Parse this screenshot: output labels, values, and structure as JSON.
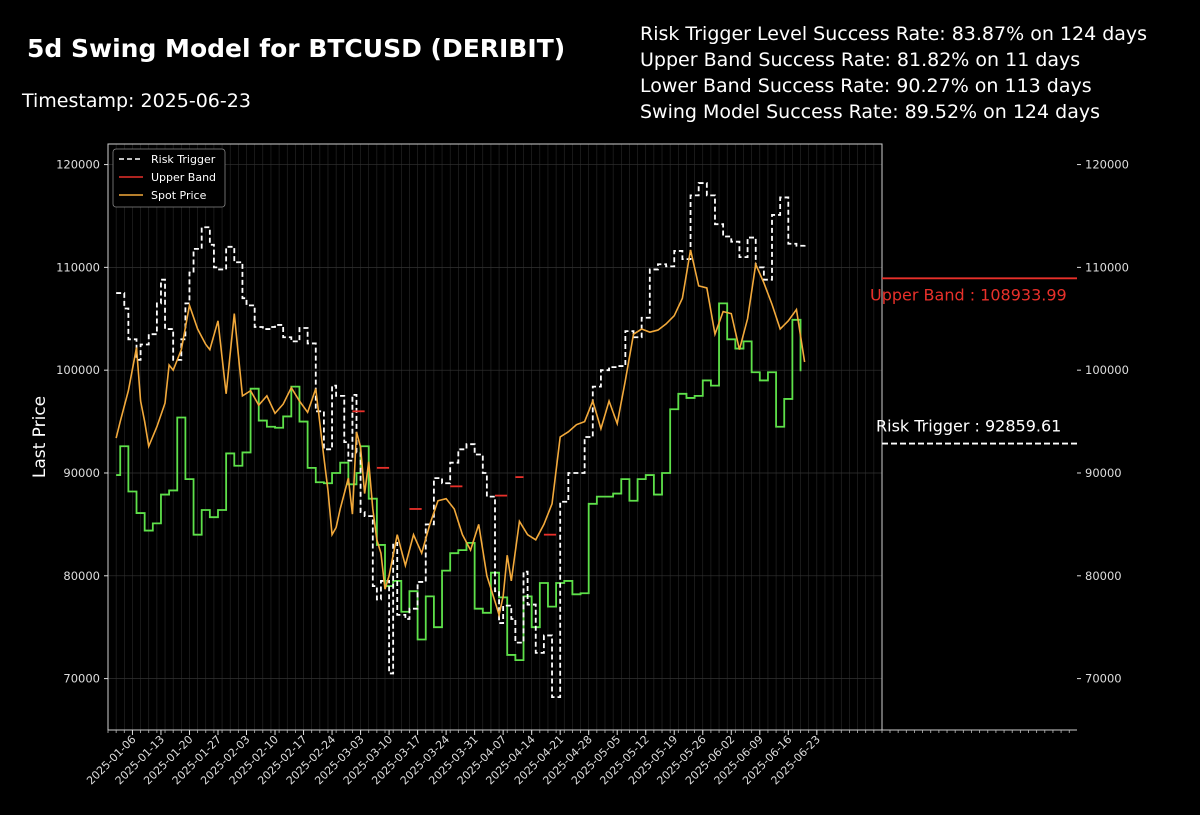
{
  "title": "5d Swing Model for BTCUSD (DERIBIT)",
  "timestamp": "Timestamp: 2025-06-23",
  "stats": [
    "Risk Trigger Level Success Rate: 83.87% on 124 days",
    "Upper Band Success Rate: 81.82% on 11 days",
    "Lower Band Success Rate: 90.27% on 113 days",
    "Swing Model Success Rate: 89.52% on 124 days"
  ],
  "colors": {
    "background": "#000000",
    "risk_trigger": "#ffffff",
    "upper_band": "#e8302a",
    "spot_price": "#f2a93b",
    "lower_band": "#5ee04a"
  },
  "chart_data": {
    "type": "line",
    "title": "",
    "xlabel": "",
    "ylabel": "Last Price",
    "ylim": [
      65000,
      122000
    ],
    "y_ticks": [
      70000,
      80000,
      90000,
      100000,
      110000,
      120000
    ],
    "x_ticks": [
      "2025-01-06",
      "2025-01-13",
      "2025-01-20",
      "2025-01-27",
      "2025-02-03",
      "2025-02-10",
      "2025-02-17",
      "2025-02-24",
      "2025-03-03",
      "2025-03-10",
      "2025-03-17",
      "2025-03-24",
      "2025-03-31",
      "2025-04-07",
      "2025-04-14",
      "2025-04-21",
      "2025-04-28",
      "2025-05-05",
      "2025-05-12",
      "2025-05-19",
      "2025-05-26",
      "2025-06-02",
      "2025-06-09",
      "2025-06-16",
      "2025-06-23"
    ],
    "x_range": [
      "2024-12-31",
      "2025-07-09"
    ],
    "grid": true,
    "legend_position": "top-left",
    "legend": [
      "Risk Trigger",
      "Upper Band",
      "Spot Price"
    ],
    "series": [
      {
        "name": "Risk Trigger",
        "style": "step-dashed",
        "x": [
          "2025-01-02",
          "2025-01-04",
          "2025-01-05",
          "2025-01-07",
          "2025-01-08",
          "2025-01-10",
          "2025-01-12",
          "2025-01-13",
          "2025-01-14",
          "2025-01-16",
          "2025-01-18",
          "2025-01-19",
          "2025-01-20",
          "2025-01-21",
          "2025-01-23",
          "2025-01-25",
          "2025-01-26",
          "2025-01-27",
          "2025-01-29",
          "2025-01-31",
          "2025-02-02",
          "2025-02-03",
          "2025-02-05",
          "2025-02-07",
          "2025-02-09",
          "2025-02-10",
          "2025-02-12",
          "2025-02-14",
          "2025-02-16",
          "2025-02-18",
          "2025-02-20",
          "2025-02-22",
          "2025-02-24",
          "2025-02-25",
          "2025-02-27",
          "2025-02-28",
          "2025-03-01",
          "2025-03-02",
          "2025-03-03",
          "2025-03-04",
          "2025-03-06",
          "2025-03-07",
          "2025-03-08",
          "2025-03-10",
          "2025-03-11",
          "2025-03-12",
          "2025-03-14",
          "2025-03-15",
          "2025-03-17",
          "2025-03-19",
          "2025-03-21",
          "2025-03-23",
          "2025-03-25",
          "2025-03-27",
          "2025-03-29",
          "2025-03-31",
          "2025-04-02",
          "2025-04-03",
          "2025-04-05",
          "2025-04-06",
          "2025-04-07",
          "2025-04-09",
          "2025-04-10",
          "2025-04-12",
          "2025-04-13",
          "2025-04-15",
          "2025-04-17",
          "2025-04-19",
          "2025-04-21",
          "2025-04-23",
          "2025-04-25",
          "2025-04-27",
          "2025-04-29",
          "2025-05-01",
          "2025-05-03",
          "2025-05-05",
          "2025-05-07",
          "2025-05-09",
          "2025-05-11",
          "2025-05-13",
          "2025-05-15",
          "2025-05-17",
          "2025-05-19",
          "2025-05-21",
          "2025-05-23",
          "2025-05-25",
          "2025-05-27",
          "2025-05-29",
          "2025-05-31",
          "2025-06-02",
          "2025-06-04",
          "2025-06-06",
          "2025-06-08",
          "2025-06-10",
          "2025-06-12",
          "2025-06-14",
          "2025-06-16",
          "2025-06-18",
          "2025-06-20"
        ],
        "y": [
          107500,
          106000,
          103000,
          101000,
          102500,
          103500,
          106500,
          108800,
          104000,
          101000,
          103000,
          106500,
          109500,
          111800,
          113900,
          112200,
          110000,
          109800,
          112000,
          110500,
          107000,
          106300,
          104200,
          104000,
          104200,
          104400,
          103200,
          102800,
          104100,
          102600,
          96000,
          92300,
          98500,
          97500,
          93000,
          91200,
          97600,
          92000,
          86200,
          85800,
          79000,
          77700,
          79500,
          70500,
          83200,
          76200,
          75800,
          76800,
          79400,
          85000,
          89500,
          89000,
          91000,
          92300,
          92800,
          91800,
          90000,
          87700,
          78500,
          75400,
          77100,
          75800,
          73500,
          80400,
          77200,
          72500,
          74200,
          68200,
          87200,
          90000,
          90000,
          93500,
          98400,
          100000,
          100300,
          100400,
          103800,
          103200,
          105100,
          109800,
          110300,
          110100,
          111600,
          110800,
          117000,
          118200,
          117000,
          114200,
          113000,
          112500,
          111000,
          112900,
          110000,
          108800,
          115100,
          116800,
          112300,
          112100,
          112300
        ]
      },
      {
        "name": "Upper Band",
        "style": "step-solid",
        "segments": [
          {
            "x": [
              "2025-03-01",
              "2025-03-02",
              "2025-03-04"
            ],
            "y": [
              96000,
              96000,
              96000
            ]
          },
          {
            "x": [
              "2025-03-07",
              "2025-03-08",
              "2025-03-10"
            ],
            "y": [
              90500,
              90500,
              90500
            ]
          },
          {
            "x": [
              "2025-03-15",
              "2025-03-16",
              "2025-03-18"
            ],
            "y": [
              86500,
              86500,
              86500
            ]
          },
          {
            "x": [
              "2025-03-25",
              "2025-03-26",
              "2025-03-28"
            ],
            "y": [
              88700,
              88700,
              88700
            ]
          },
          {
            "x": [
              "2025-04-05",
              "2025-04-06",
              "2025-04-08"
            ],
            "y": [
              87800,
              87800,
              87800
            ]
          },
          {
            "x": [
              "2025-04-10",
              "2025-04-11",
              "2025-04-12"
            ],
            "y": [
              89600,
              89600,
              89600
            ]
          },
          {
            "x": [
              "2025-04-17",
              "2025-04-18",
              "2025-04-20"
            ],
            "y": [
              84000,
              84000,
              84000
            ]
          }
        ]
      },
      {
        "name": "Spot Price",
        "style": "line",
        "x": [
          "2025-01-02",
          "2025-01-03",
          "2025-01-05",
          "2025-01-07",
          "2025-01-08",
          "2025-01-09",
          "2025-01-10",
          "2025-01-12",
          "2025-01-14",
          "2025-01-15",
          "2025-01-16",
          "2025-01-18",
          "2025-01-20",
          "2025-01-22",
          "2025-01-24",
          "2025-01-25",
          "2025-01-27",
          "2025-01-29",
          "2025-01-31",
          "2025-02-01",
          "2025-02-02",
          "2025-02-04",
          "2025-02-06",
          "2025-02-08",
          "2025-02-10",
          "2025-02-12",
          "2025-02-14",
          "2025-02-16",
          "2025-02-18",
          "2025-02-20",
          "2025-02-22",
          "2025-02-23",
          "2025-02-24",
          "2025-02-25",
          "2025-02-26",
          "2025-02-28",
          "2025-03-01",
          "2025-03-02",
          "2025-03-03",
          "2025-03-04",
          "2025-03-05",
          "2025-03-06",
          "2025-03-07",
          "2025-03-08",
          "2025-03-09",
          "2025-03-10",
          "2025-03-12",
          "2025-03-14",
          "2025-03-16",
          "2025-03-18",
          "2025-03-20",
          "2025-03-22",
          "2025-03-24",
          "2025-03-26",
          "2025-03-28",
          "2025-03-30",
          "2025-04-01",
          "2025-04-03",
          "2025-04-05",
          "2025-04-06",
          "2025-04-07",
          "2025-04-08",
          "2025-04-09",
          "2025-04-11",
          "2025-04-13",
          "2025-04-15",
          "2025-04-17",
          "2025-04-19",
          "2025-04-21",
          "2025-04-23",
          "2025-04-25",
          "2025-04-27",
          "2025-04-29",
          "2025-05-01",
          "2025-05-03",
          "2025-05-05",
          "2025-05-07",
          "2025-05-09",
          "2025-05-11",
          "2025-05-13",
          "2025-05-15",
          "2025-05-17",
          "2025-05-19",
          "2025-05-21",
          "2025-05-23",
          "2025-05-25",
          "2025-05-27",
          "2025-05-29",
          "2025-05-31",
          "2025-06-02",
          "2025-06-04",
          "2025-06-06",
          "2025-06-08",
          "2025-06-10",
          "2025-06-12",
          "2025-06-14",
          "2025-06-16",
          "2025-06-18",
          "2025-06-20"
        ],
        "y": [
          93400,
          95000,
          98000,
          102200,
          97000,
          95000,
          92600,
          94500,
          96800,
          100500,
          100000,
          102000,
          106300,
          104000,
          102500,
          102000,
          104800,
          97700,
          105500,
          101500,
          97500,
          98000,
          96600,
          97500,
          95800,
          96700,
          98300,
          97000,
          95900,
          98200,
          91500,
          88300,
          84000,
          84700,
          86500,
          89500,
          86000,
          94000,
          92500,
          88000,
          91100,
          86500,
          83500,
          82200,
          78700,
          80000,
          84000,
          81000,
          84000,
          82200,
          85000,
          87300,
          87500,
          86500,
          84000,
          82500,
          85000,
          80000,
          77500,
          76200,
          78000,
          82000,
          79500,
          85300,
          84000,
          83500,
          85000,
          87000,
          93500,
          94000,
          94700,
          95000,
          97000,
          94300,
          97000,
          94800,
          99000,
          103500,
          104000,
          103700,
          103900,
          104500,
          105300,
          107000,
          111700,
          108200,
          108000,
          103500,
          105700,
          105500,
          102000,
          105000,
          110300,
          108500,
          106400,
          104000,
          104800,
          105900,
          100800
        ]
      },
      {
        "name": "",
        "style": "step-solid",
        "x": [
          "2025-01-02",
          "2025-01-03",
          "2025-01-05",
          "2025-01-07",
          "2025-01-09",
          "2025-01-11",
          "2025-01-13",
          "2025-01-15",
          "2025-01-17",
          "2025-01-19",
          "2025-01-21",
          "2025-01-23",
          "2025-01-25",
          "2025-01-27",
          "2025-01-29",
          "2025-01-31",
          "2025-02-02",
          "2025-02-04",
          "2025-02-06",
          "2025-02-08",
          "2025-02-10",
          "2025-02-12",
          "2025-02-14",
          "2025-02-16",
          "2025-02-18",
          "2025-02-20",
          "2025-02-22",
          "2025-02-24",
          "2025-02-26",
          "2025-02-28",
          "2025-03-02",
          "2025-03-03",
          "2025-03-05",
          "2025-03-07",
          "2025-03-09",
          "2025-03-11",
          "2025-03-13",
          "2025-03-15",
          "2025-03-17",
          "2025-03-19",
          "2025-03-21",
          "2025-03-23",
          "2025-03-25",
          "2025-03-27",
          "2025-03-29",
          "2025-03-31",
          "2025-04-02",
          "2025-04-04",
          "2025-04-06",
          "2025-04-08",
          "2025-04-10",
          "2025-04-12",
          "2025-04-14",
          "2025-04-16",
          "2025-04-18",
          "2025-04-20",
          "2025-04-22",
          "2025-04-24",
          "2025-04-26",
          "2025-04-28",
          "2025-04-30",
          "2025-05-02",
          "2025-05-04",
          "2025-05-06",
          "2025-05-08",
          "2025-05-10",
          "2025-05-12",
          "2025-05-14",
          "2025-05-16",
          "2025-05-18",
          "2025-05-20",
          "2025-05-22",
          "2025-05-24",
          "2025-05-26",
          "2025-05-28",
          "2025-05-30",
          "2025-06-01",
          "2025-06-03",
          "2025-06-05",
          "2025-06-07",
          "2025-06-09",
          "2025-06-11",
          "2025-06-13",
          "2025-06-15",
          "2025-06-17",
          "2025-06-19"
        ],
        "y": [
          89800,
          92600,
          88200,
          86100,
          84400,
          85100,
          87900,
          88300,
          95400,
          89400,
          84000,
          86400,
          85700,
          86400,
          91900,
          90700,
          92000,
          98200,
          95100,
          94500,
          94400,
          95500,
          98400,
          95000,
          90500,
          89100,
          89000,
          90000,
          91000,
          88900,
          90000,
          92600,
          87500,
          83000,
          79000,
          79500,
          76500,
          78500,
          73800,
          78000,
          75000,
          80500,
          82200,
          82500,
          83200,
          76800,
          76400,
          80300,
          77900,
          72300,
          71800,
          78000,
          75000,
          79300,
          77000,
          79300,
          79500,
          78200,
          78300,
          87000,
          87700,
          87700,
          88000,
          89400,
          87300,
          89400,
          89800,
          87900,
          90000,
          96200,
          97700,
          97300,
          97500,
          99000,
          98500,
          106500,
          103000,
          102100,
          102800,
          99800,
          99000,
          99800,
          94500,
          97200,
          104900,
          99900
        ]
      }
    ],
    "annotations": [
      {
        "label": "Upper Band : 108933.99",
        "value": 108933.99,
        "series": "Upper Band"
      },
      {
        "label": "Risk Trigger : 92859.61",
        "value": 92859.61,
        "series": "Risk Trigger"
      }
    ]
  }
}
